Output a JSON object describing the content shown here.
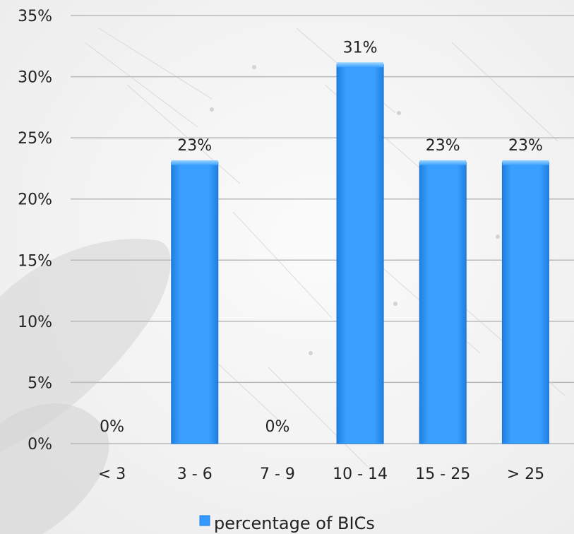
{
  "chart_data": {
    "type": "bar",
    "categories": [
      "< 3",
      "3 - 6",
      "7 - 9",
      "10 - 14",
      "15 - 25",
      "> 25"
    ],
    "series": [
      {
        "name": "percentage of BICs",
        "values": [
          0,
          23,
          0,
          31,
          23,
          23
        ],
        "data_labels": [
          "0%",
          "23%",
          "0%",
          "31%",
          "23%",
          "23%"
        ],
        "color": "#3399ff"
      }
    ],
    "y_ticks": [
      "0%",
      "5%",
      "10%",
      "15%",
      "20%",
      "25%",
      "30%",
      "35%"
    ],
    "ylim": [
      0,
      35
    ],
    "grid": true,
    "legend_position": "bottom"
  }
}
